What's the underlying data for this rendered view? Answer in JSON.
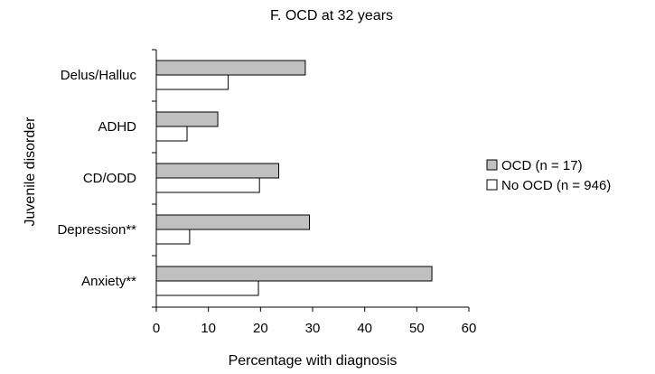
{
  "chart_data": {
    "type": "bar",
    "orientation": "horizontal",
    "title": "F. OCD at 32 years",
    "xlabel": "Percentage with diagnosis",
    "ylabel": "Juvenile disorder",
    "categories": [
      "Delus/Halluc",
      "ADHD",
      "CD/ODD",
      "Depression**",
      "Anxiety**"
    ],
    "series": [
      {
        "name": "OCD (n = 17)",
        "values": [
          28.6,
          11.8,
          23.5,
          29.4,
          52.9
        ],
        "color": "#c0c0c0"
      },
      {
        "name": "No OCD (n = 946)",
        "values": [
          13.8,
          5.9,
          19.8,
          6.4,
          19.6
        ],
        "color": "#ffffff"
      }
    ],
    "xlim": [
      0,
      60
    ],
    "xticks": [
      0,
      10,
      20,
      30,
      40,
      50,
      60
    ],
    "grid": false,
    "legend_position": "right"
  }
}
